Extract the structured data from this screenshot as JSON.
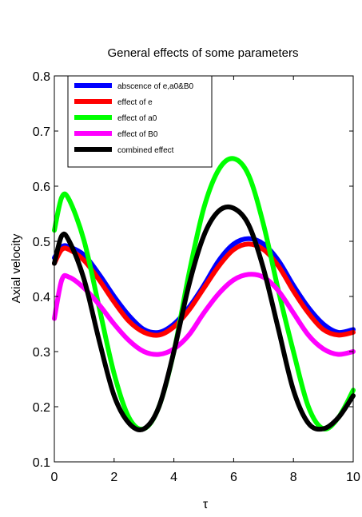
{
  "chart_data": {
    "type": "line",
    "title": "General effects of some parameters",
    "xlabel": "τ",
    "ylabel": "Axial velocity",
    "xlim": [
      0,
      10
    ],
    "ylim": [
      0.1,
      0.8
    ],
    "xticks": [
      0,
      2,
      4,
      6,
      8,
      10
    ],
    "xtick_labels": [
      "0",
      "2",
      "4",
      "6",
      "8",
      "10"
    ],
    "yticks": [
      0.1,
      0.2,
      0.3,
      0.4,
      0.5,
      0.6,
      0.7,
      0.8
    ],
    "ytick_labels": [
      "0.1",
      "0.2",
      "0.3",
      "0.4",
      "0.5",
      "0.6",
      "0.7",
      "0.8"
    ],
    "grid": false,
    "legend_position": "top-left",
    "x": [
      0,
      0.25,
      0.5,
      1,
      1.5,
      2,
      2.5,
      3,
      3.5,
      4,
      4.5,
      5,
      5.5,
      6,
      6.5,
      7,
      7.5,
      8,
      8.5,
      9,
      9.5,
      10
    ],
    "series": [
      {
        "name": "abscence of e,a0&B0",
        "color": "#0000ff",
        "values": [
          0.47,
          0.49,
          0.49,
          0.475,
          0.44,
          0.4,
          0.365,
          0.34,
          0.335,
          0.35,
          0.38,
          0.42,
          0.465,
          0.495,
          0.505,
          0.495,
          0.465,
          0.42,
          0.38,
          0.35,
          0.335,
          0.34
        ]
      },
      {
        "name": "effect of e",
        "color": "#ff0000",
        "values": [
          0.46,
          0.485,
          0.485,
          0.465,
          0.43,
          0.39,
          0.355,
          0.335,
          0.33,
          0.345,
          0.375,
          0.415,
          0.455,
          0.485,
          0.495,
          0.485,
          0.455,
          0.41,
          0.37,
          0.34,
          0.33,
          0.335
        ]
      },
      {
        "name": "effect of a0",
        "color": "#00ff00",
        "values": [
          0.52,
          0.58,
          0.575,
          0.5,
          0.38,
          0.26,
          0.18,
          0.16,
          0.2,
          0.3,
          0.44,
          0.56,
          0.63,
          0.65,
          0.62,
          0.53,
          0.41,
          0.3,
          0.2,
          0.16,
          0.18,
          0.23
        ]
      },
      {
        "name": "effect of B0",
        "color": "#ff00ff",
        "values": [
          0.36,
          0.43,
          0.435,
          0.415,
          0.385,
          0.35,
          0.32,
          0.3,
          0.295,
          0.305,
          0.33,
          0.37,
          0.405,
          0.43,
          0.44,
          0.435,
          0.41,
          0.37,
          0.33,
          0.305,
          0.295,
          0.3
        ]
      },
      {
        "name": "combined effect",
        "color": "#000000",
        "values": [
          0.46,
          0.51,
          0.5,
          0.43,
          0.32,
          0.22,
          0.17,
          0.16,
          0.2,
          0.3,
          0.42,
          0.51,
          0.555,
          0.56,
          0.53,
          0.45,
          0.34,
          0.23,
          0.17,
          0.16,
          0.18,
          0.22
        ]
      }
    ]
  }
}
